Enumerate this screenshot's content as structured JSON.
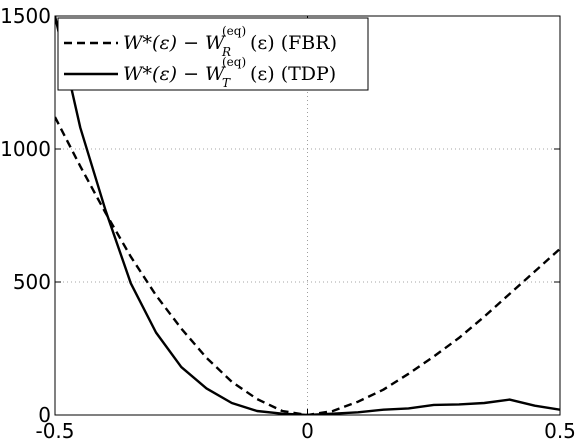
{
  "chart_data": {
    "type": "line",
    "title": "",
    "xlabel": "",
    "ylabel": "",
    "xlim": [
      -0.5,
      0.5
    ],
    "ylim": [
      0,
      1500
    ],
    "xticks": [
      -0.5,
      0,
      0.5
    ],
    "yticks": [
      0,
      500,
      1000,
      1500
    ],
    "xtick_labels": [
      "-0.5",
      "0",
      "0.5"
    ],
    "ytick_labels": [
      "0",
      "500",
      "1000",
      "1500"
    ],
    "grid": "dotted",
    "legend_position": "top-left",
    "series": [
      {
        "name": "W*(ε) − W_R^(eq)(ε) (FBR)",
        "style": "dashed",
        "color": "#000000",
        "x": [
          -0.5,
          -0.45,
          -0.4,
          -0.35,
          -0.3,
          -0.25,
          -0.2,
          -0.15,
          -0.1,
          -0.05,
          0,
          0.05,
          0.1,
          0.15,
          0.2,
          0.25,
          0.3,
          0.35,
          0.4,
          0.45,
          0.5
        ],
        "y": [
          1120,
          935,
          760,
          595,
          450,
          325,
          215,
          125,
          60,
          15,
          0,
          15,
          50,
          95,
          155,
          220,
          290,
          370,
          455,
          540,
          625
        ]
      },
      {
        "name": "W*(ε) − W_T^(eq)(ε) (TDP)",
        "style": "solid",
        "color": "#000000",
        "x": [
          -0.5,
          -0.45,
          -0.4,
          -0.35,
          -0.3,
          -0.25,
          -0.2,
          -0.15,
          -0.1,
          -0.05,
          0,
          0.05,
          0.1,
          0.15,
          0.2,
          0.25,
          0.3,
          0.35,
          0.4,
          0.45,
          0.5
        ],
        "y": [
          1500,
          1080,
          770,
          495,
          310,
          180,
          100,
          45,
          15,
          5,
          0,
          5,
          10,
          20,
          25,
          38,
          40,
          45,
          58,
          35,
          20
        ]
      }
    ]
  }
}
